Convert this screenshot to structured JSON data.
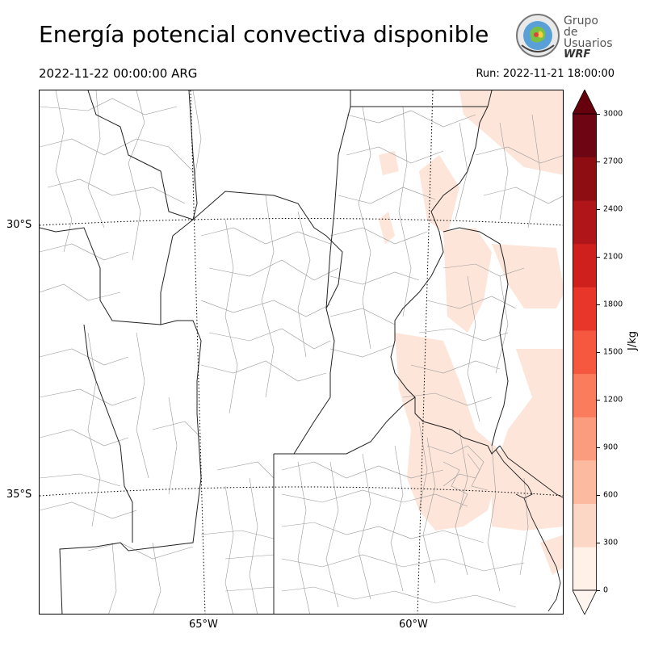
{
  "header": {
    "title": "Energía potencial convectiva disponible",
    "valid_time": "2022-11-22 00:00:00 ARG",
    "run_label": "Run: 2022-11-21 18:00:00"
  },
  "logo": {
    "line1": "Grupo de",
    "line2": "Usuarios",
    "line3": "WRF"
  },
  "map": {
    "lat_labels": [
      "30°S",
      "35°S"
    ],
    "lon_labels": [
      "65°W",
      "60°W"
    ],
    "field_color": "#fee5d9"
  },
  "colorbar": {
    "unit": "J/kg",
    "ticks": [
      "0",
      "300",
      "600",
      "900",
      "1200",
      "1500",
      "1800",
      "2100",
      "2400",
      "2700",
      "3000"
    ],
    "colors": [
      "#fff0e8",
      "#fdd7c6",
      "#fcbba1",
      "#fc9c7f",
      "#fb7c5d",
      "#f5583f",
      "#e9362a",
      "#d0201d",
      "#af1519",
      "#8e0d13",
      "#6d0513"
    ],
    "extend_under_color": "#fff5f0",
    "extend_over_color": "#67000d"
  }
}
